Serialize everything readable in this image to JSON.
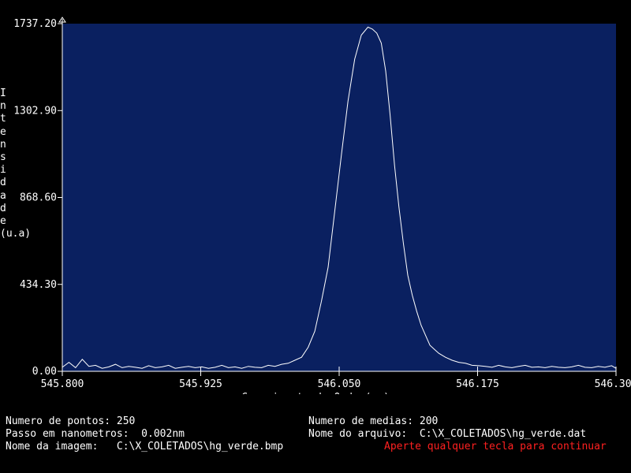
{
  "chart_data": {
    "type": "line",
    "title": "",
    "xlabel": "Comprimento de Onda (nm)",
    "ylabel_letters": [
      "I",
      "n",
      "t",
      "e",
      "n",
      "s",
      "i",
      "d",
      "a",
      "d",
      "e",
      "(u.a)"
    ],
    "xlim": [
      545.8,
      546.3
    ],
    "ylim": [
      0,
      1737.2
    ],
    "x_ticks": [
      "545.800",
      "545.925",
      "546.050",
      "546.175",
      "546.300"
    ],
    "x_tick_values": [
      545.8,
      545.925,
      546.05,
      546.175,
      546.3
    ],
    "y_ticks": [
      "0.00",
      "434.30",
      "868.60",
      "1302.90",
      "1737.20"
    ],
    "y_tick_values": [
      0,
      434.3,
      868.6,
      1302.9,
      1737.2
    ],
    "grid": false,
    "colors": {
      "background": "#0a2060",
      "line": "#ffffff",
      "axes": "#ffffff"
    },
    "series": [
      {
        "name": "",
        "x": [
          545.8,
          545.806,
          545.812,
          545.818,
          545.824,
          545.83,
          545.836,
          545.842,
          545.848,
          545.854,
          545.86,
          545.866,
          545.872,
          545.878,
          545.884,
          545.89,
          545.896,
          545.902,
          545.908,
          545.914,
          545.92,
          545.926,
          545.932,
          545.938,
          545.944,
          545.95,
          545.956,
          545.962,
          545.968,
          545.974,
          545.98,
          545.986,
          545.992,
          545.998,
          546.004,
          546.01,
          546.016,
          546.022,
          546.028,
          546.034,
          546.04,
          546.046,
          546.052,
          546.058,
          546.064,
          546.07,
          546.076,
          546.08,
          546.084,
          546.088,
          546.092,
          546.096,
          546.1,
          546.104,
          546.108,
          546.112,
          546.116,
          546.12,
          546.124,
          546.128,
          546.132,
          546.136,
          546.14,
          546.146,
          546.152,
          546.158,
          546.164,
          546.17,
          546.176,
          546.182,
          546.188,
          546.194,
          546.2,
          546.206,
          546.212,
          546.218,
          546.224,
          546.23,
          546.236,
          546.242,
          546.248,
          546.254,
          546.26,
          546.266,
          546.272,
          546.278,
          546.284,
          546.29,
          546.296,
          546.3
        ],
        "y": [
          20,
          45,
          18,
          60,
          25,
          30,
          15,
          22,
          35,
          18,
          25,
          20,
          15,
          28,
          18,
          22,
          30,
          15,
          20,
          25,
          18,
          22,
          15,
          20,
          30,
          18,
          22,
          15,
          25,
          20,
          18,
          30,
          25,
          35,
          40,
          55,
          70,
          120,
          200,
          350,
          520,
          800,
          1080,
          1350,
          1560,
          1680,
          1720,
          1710,
          1690,
          1640,
          1500,
          1280,
          1030,
          820,
          640,
          480,
          380,
          300,
          230,
          180,
          130,
          110,
          90,
          70,
          55,
          45,
          40,
          30,
          28,
          25,
          20,
          30,
          22,
          18,
          25,
          30,
          20,
          22,
          18,
          25,
          20,
          18,
          22,
          30,
          20,
          18,
          25,
          20,
          28,
          15
        ]
      }
    ]
  },
  "info": {
    "numero_pontos": "Numero de pontos: 250",
    "passo": "Passo em nanometros:  0.002nm",
    "nome_imagem": "Nome da imagem:   C:\\X_COLETADOS\\hg_verde.bmp",
    "numero_medias": "Numero de medias: 200",
    "nome_arquivo": "Nome do arquivo:  C:\\X_COLETADOS\\hg_verde.dat",
    "prompt": "Aperte qualquer tecla para continuar",
    "prompt_color": "#ff2020"
  }
}
